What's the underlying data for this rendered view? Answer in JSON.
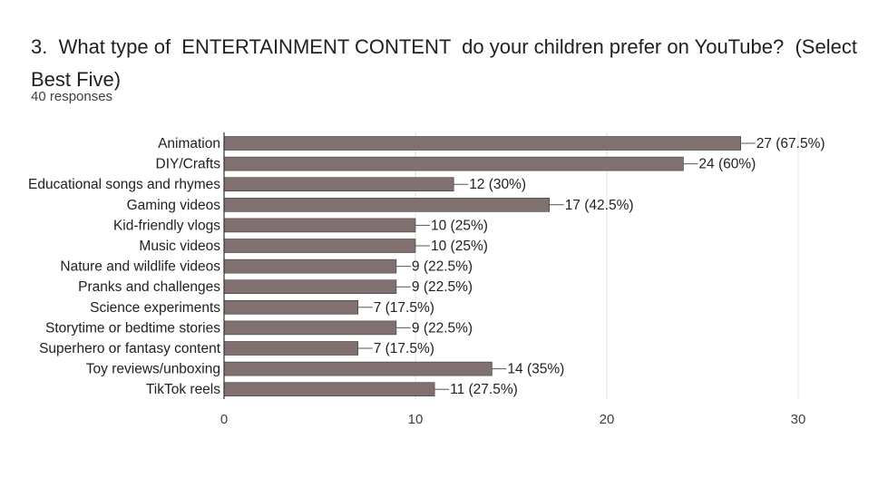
{
  "question": {
    "title": "3.  What type of  ENTERTAINMENT CONTENT  do your children prefer on YouTube?  (Select Best Five)",
    "responses": "40 responses"
  },
  "colors": {
    "bar": "#80706f",
    "grid": "#e0e0e0",
    "axis": "#333333",
    "text": "#202124"
  },
  "chart_data": {
    "type": "bar",
    "orientation": "horizontal",
    "categories": [
      "Animation",
      "DIY/Crafts",
      "Educational songs and rhymes",
      "Gaming videos",
      "Kid-friendly vlogs",
      "Music videos",
      "Nature and wildlife videos",
      "Pranks and challenges",
      "Science experiments",
      "Storytime or bedtime stories",
      "Superhero or fantasy content",
      "Toy reviews/unboxing",
      "TikTok reels"
    ],
    "values": [
      27,
      24,
      12,
      17,
      10,
      10,
      9,
      9,
      7,
      9,
      7,
      14,
      11
    ],
    "data_labels": [
      "27 (67.5%)",
      "24 (60%)",
      "12 (30%)",
      "17 (42.5%)",
      "10 (25%)",
      "10 (25%)",
      "9 (22.5%)",
      "9 (22.5%)",
      "7 (17.5%)",
      "9 (22.5%)",
      "7 (17.5%)",
      "14 (35%)",
      "11 (27.5%)"
    ],
    "xlim": [
      0,
      30
    ],
    "xticks": [
      0,
      10,
      20,
      30
    ],
    "grid": true
  }
}
